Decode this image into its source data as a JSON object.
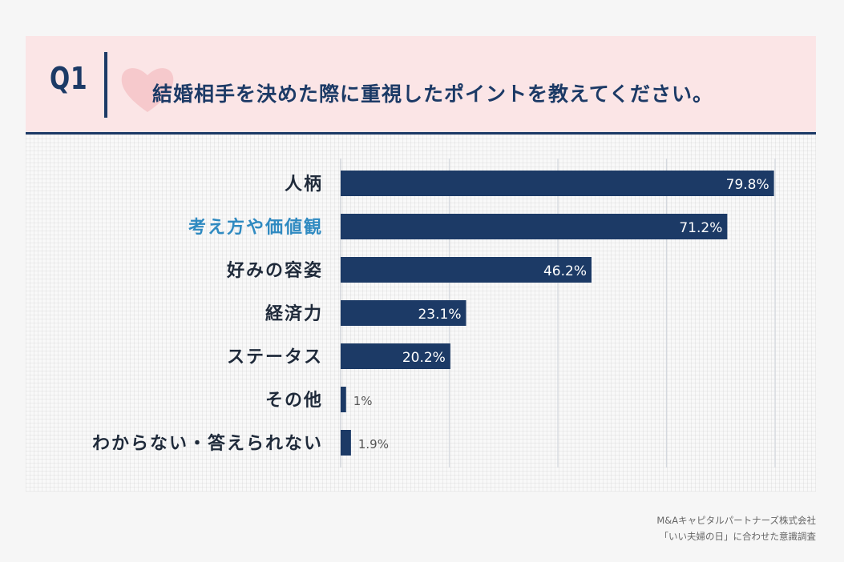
{
  "header": {
    "q_label": "Q1",
    "question": "結婚相手を決めた際に重視したポイントを教えてください。"
  },
  "colors": {
    "bar": "#1c3a66",
    "accent_label": "#2f8ac1",
    "header_bg": "#fbe5e6"
  },
  "chart_data": {
    "type": "bar",
    "orientation": "horizontal",
    "title": "結婚相手を決めた際に重視したポイントを教えてください。",
    "categories": [
      "人柄",
      "考え方や価値観",
      "好みの容姿",
      "経済力",
      "ステータス",
      "その他",
      "わからない・答えられない"
    ],
    "values": [
      79.8,
      71.2,
      46.2,
      23.1,
      20.2,
      1,
      1.9
    ],
    "value_labels": [
      "79.8%",
      "71.2%",
      "46.2%",
      "23.1%",
      "20.2%",
      "1%",
      "1.9%"
    ],
    "highlight_index": 1,
    "xlim": [
      0,
      80
    ],
    "unit": "%"
  },
  "source": {
    "line1": "M&Aキャピタルパートナーズ株式会社",
    "line2": "「いい夫婦の日」に合わせた意識調査"
  }
}
